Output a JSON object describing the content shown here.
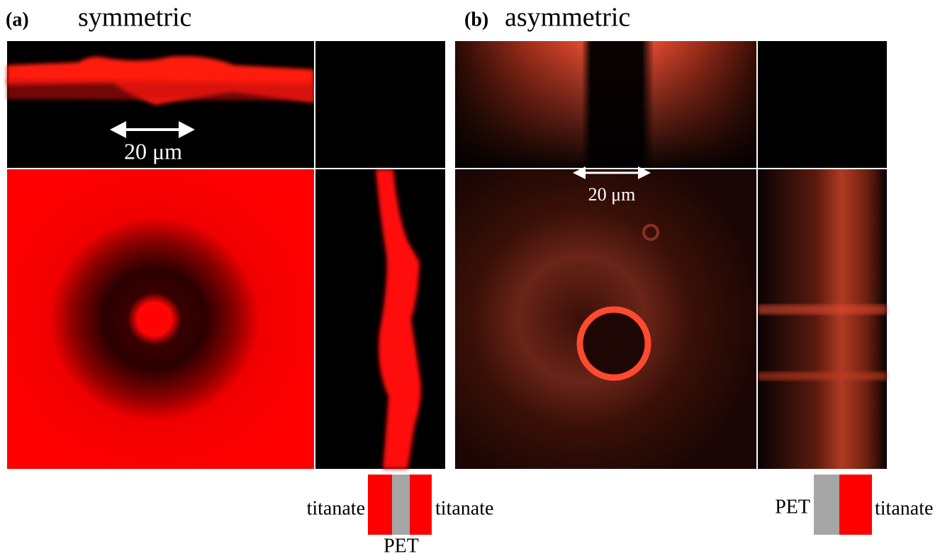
{
  "panels": [
    {
      "label": "(a)",
      "title": "symmetric",
      "scale_bar": "20 μm",
      "schematic": {
        "left": "titanate",
        "right": "titanate",
        "bottom": "PET"
      }
    },
    {
      "label": "(b)",
      "title": "asymmetric",
      "scale_bar": "20 μm",
      "schematic": {
        "left": "PET",
        "right": "titanate"
      }
    }
  ]
}
